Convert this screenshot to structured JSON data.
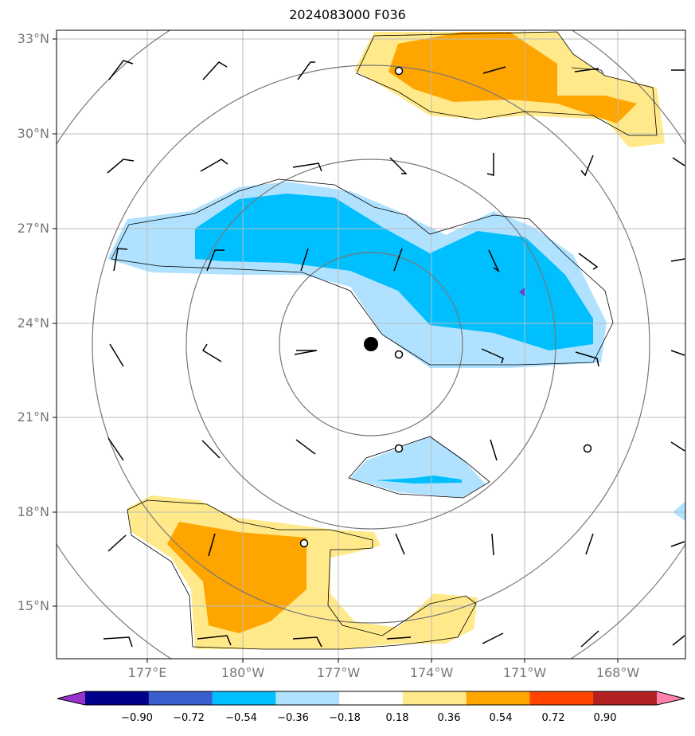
{
  "title": "2024083000 F036",
  "lat_labels": [
    "33°N",
    "30°N",
    "27°N",
    "24°N",
    "21°N",
    "18°N",
    "15°N"
  ],
  "lon_labels": [
    "177°E",
    "180°W",
    "177°W",
    "174°W",
    "171°W",
    "168°W"
  ],
  "colorbar": {
    "labels": [
      "−0.90",
      "−0.72",
      "−0.54",
      "−0.36",
      "−0.18",
      "0.18",
      "0.36",
      "0.54",
      "0.72",
      "0.90"
    ],
    "colors": [
      "#9932cc",
      "#00008b",
      "#3a5fcd",
      "#00bfff",
      "#b0e2ff",
      "#ffffff",
      "#ffe98a",
      "#ffa500",
      "#ff4500",
      "#b22222",
      "#ff82ab"
    ]
  },
  "colors": {
    "light_blue": "#b0e2ff",
    "blue": "#00bfff",
    "light_yellow": "#ffe98a",
    "orange": "#ffa500",
    "grid": "#bbbbbb",
    "range_ring": "#777777",
    "axis_label": "#777777"
  },
  "markers": {
    "center_label": "typhoon-center",
    "stations": "station-circles"
  }
}
